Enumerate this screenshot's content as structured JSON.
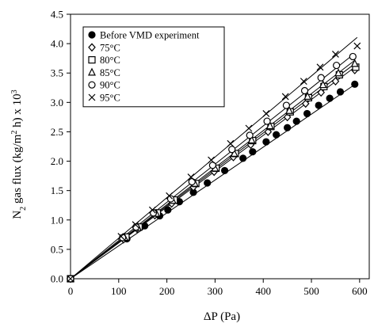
{
  "chart_data": {
    "type": "scatter",
    "title": "",
    "xlabel": "ΔP (Pa)",
    "ylabel_parts": {
      "base": "N",
      "sub": "2",
      "mid": " gas flux (kg/m",
      "sup1": "2",
      "mid2": " h) x 10",
      "sup2": "3"
    },
    "xlim": [
      0,
      620
    ],
    "ylim": [
      0,
      4.5
    ],
    "xticks": [
      0,
      100,
      200,
      300,
      400,
      500,
      600
    ],
    "xtick_labels": [
      "0",
      "100",
      "200",
      "300",
      "400",
      "500",
      "600"
    ],
    "yticks": [
      0,
      0.5,
      1.0,
      1.5,
      2.0,
      2.5,
      3.0,
      3.5,
      4.0,
      4.5
    ],
    "ytick_labels": [
      "0.0",
      "0.5",
      "1.0",
      "1.5",
      "2.0",
      "2.5",
      "3.0",
      "3.5",
      "4.0",
      "4.5"
    ],
    "grid": false,
    "legend_position": "top-left",
    "series": [
      {
        "name": "Before VMD experiment",
        "marker": "filled-circle",
        "x": [
          0,
          117,
          154,
          185,
          202,
          226,
          255,
          284,
          320,
          358,
          378,
          406,
          427,
          450,
          469,
          491,
          515,
          538,
          560,
          590
        ],
        "y": [
          0,
          0.68,
          0.9,
          1.07,
          1.17,
          1.31,
          1.47,
          1.63,
          1.84,
          2.05,
          2.16,
          2.33,
          2.45,
          2.57,
          2.68,
          2.81,
          2.95,
          3.07,
          3.18,
          3.31
        ],
        "trend": [
          0,
          0.0056
        ]
      },
      {
        "name": "75°C",
        "marker": "open-diamond",
        "x": [
          0,
          110,
          138,
          175,
          210,
          255,
          298,
          338,
          374,
          410,
          450,
          488,
          520,
          550,
          590
        ],
        "y": [
          0,
          0.67,
          0.85,
          1.08,
          1.28,
          1.56,
          1.82,
          2.07,
          2.28,
          2.5,
          2.75,
          2.98,
          3.17,
          3.36,
          3.55
        ],
        "trend": [
          0,
          0.0061
        ]
      },
      {
        "name": "80°C",
        "marker": "open-square",
        "x": [
          0,
          115,
          142,
          180,
          215,
          260,
          302,
          342,
          378,
          416,
          456,
          494,
          526,
          558,
          592
        ],
        "y": [
          0,
          0.71,
          0.88,
          1.12,
          1.34,
          1.62,
          1.88,
          2.13,
          2.35,
          2.59,
          2.84,
          3.08,
          3.27,
          3.47,
          3.6
        ],
        "trend": [
          0,
          0.0062
        ]
      },
      {
        "name": "85°C",
        "marker": "open-triangle",
        "x": [
          0,
          112,
          140,
          178,
          212,
          258,
          300,
          340,
          376,
          414,
          454,
          492,
          524,
          556,
          590
        ],
        "y": [
          0,
          0.7,
          0.87,
          1.11,
          1.33,
          1.62,
          1.88,
          2.13,
          2.36,
          2.6,
          2.86,
          3.1,
          3.3,
          3.5,
          3.66
        ],
        "trend": [
          0,
          0.0063
        ]
      },
      {
        "name": "90°C",
        "marker": "open-circle",
        "x": [
          0,
          108,
          136,
          172,
          208,
          252,
          295,
          335,
          372,
          408,
          448,
          486,
          520,
          552,
          586
        ],
        "y": [
          0,
          0.7,
          0.88,
          1.12,
          1.36,
          1.65,
          1.93,
          2.2,
          2.44,
          2.68,
          2.95,
          3.2,
          3.42,
          3.63,
          3.78
        ],
        "trend": [
          0,
          0.0065
        ]
      },
      {
        "name": "95°C",
        "marker": "x",
        "x": [
          0,
          105,
          135,
          170,
          205,
          250,
          292,
          332,
          370,
          406,
          446,
          484,
          518,
          550,
          595
        ],
        "y": [
          0,
          0.72,
          0.92,
          1.17,
          1.41,
          1.73,
          2.02,
          2.3,
          2.56,
          2.81,
          3.1,
          3.36,
          3.6,
          3.82,
          3.96
        ],
        "trend": [
          0,
          0.0069
        ]
      }
    ]
  }
}
